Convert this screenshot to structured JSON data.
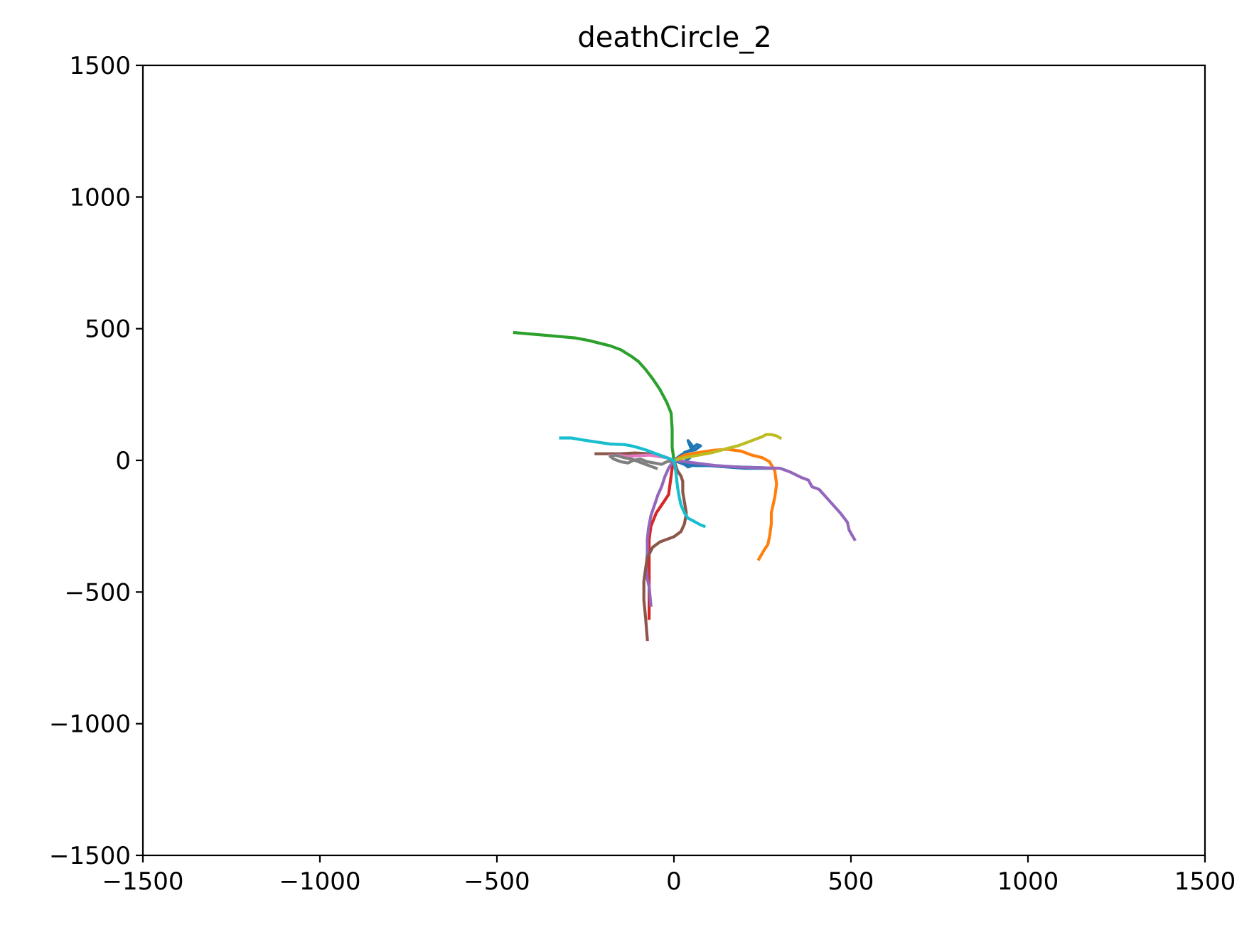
{
  "chart_data": {
    "type": "line",
    "title": "deathCircle_2",
    "xlabel": "",
    "ylabel": "",
    "xlim": [
      -1500,
      1500
    ],
    "ylim": [
      -1500,
      1500
    ],
    "xticks": [
      -1500,
      -1000,
      -500,
      0,
      500,
      1000,
      1500
    ],
    "yticks": [
      -1500,
      -1000,
      -500,
      0,
      500,
      1000,
      1500
    ],
    "xtick_labels": [
      "−1500",
      "−1000",
      "−500",
      "0",
      "500",
      "1000",
      "1500"
    ],
    "ytick_labels": [
      "−1500",
      "−1000",
      "−500",
      "0",
      "500",
      "1000",
      "1500"
    ],
    "grid": false,
    "legend": "none",
    "series": [
      {
        "color": "#1f77b4",
        "points": [
          [
            0,
            0
          ],
          [
            30,
            -15
          ],
          [
            60,
            -20
          ],
          [
            100,
            -20
          ],
          [
            150,
            -25
          ],
          [
            200,
            -30
          ],
          [
            280,
            -30
          ],
          [
            250,
            -28
          ],
          [
            180,
            -25
          ],
          [
            120,
            -22
          ],
          [
            60,
            -15
          ],
          [
            40,
            -25
          ],
          [
            25,
            -10
          ],
          [
            45,
            10
          ],
          [
            30,
            30
          ],
          [
            50,
            40
          ],
          [
            40,
            75
          ],
          [
            55,
            50
          ],
          [
            65,
            60
          ],
          [
            75,
            55
          ],
          [
            60,
            40
          ],
          [
            40,
            35
          ],
          [
            20,
            20
          ],
          [
            0,
            0
          ]
        ]
      },
      {
        "color": "#ff7f0e",
        "points": [
          [
            0,
            0
          ],
          [
            30,
            20
          ],
          [
            70,
            30
          ],
          [
            110,
            38
          ],
          [
            150,
            42
          ],
          [
            190,
            35
          ],
          [
            220,
            20
          ],
          [
            250,
            10
          ],
          [
            270,
            -5
          ],
          [
            285,
            -40
          ],
          [
            290,
            -90
          ],
          [
            285,
            -140
          ],
          [
            280,
            -170
          ],
          [
            275,
            -200
          ],
          [
            275,
            -240
          ],
          [
            270,
            -290
          ],
          [
            265,
            -320
          ],
          [
            255,
            -340
          ],
          [
            240,
            -375
          ]
        ]
      },
      {
        "color": "#2ca02c",
        "points": [
          [
            0,
            0
          ],
          [
            -5,
            50
          ],
          [
            -5,
            120
          ],
          [
            -8,
            180
          ],
          [
            -20,
            220
          ],
          [
            -40,
            270
          ],
          [
            -60,
            310
          ],
          [
            -80,
            345
          ],
          [
            -100,
            375
          ],
          [
            -120,
            395
          ],
          [
            -150,
            420
          ],
          [
            -180,
            435
          ],
          [
            -240,
            455
          ],
          [
            -280,
            465
          ],
          [
            -320,
            470
          ],
          [
            -380,
            477
          ],
          [
            -450,
            485
          ]
        ]
      },
      {
        "color": "#d62728",
        "points": [
          [
            0,
            0
          ],
          [
            -5,
            -30
          ],
          [
            -10,
            -80
          ],
          [
            -15,
            -130
          ],
          [
            -30,
            -160
          ],
          [
            -50,
            -200
          ],
          [
            -65,
            -250
          ],
          [
            -70,
            -300
          ],
          [
            -70,
            -380
          ],
          [
            -70,
            -450
          ],
          [
            -70,
            -520
          ],
          [
            -70,
            -600
          ]
        ]
      },
      {
        "color": "#9467bd",
        "points": [
          [
            0,
            0
          ],
          [
            -15,
            -30
          ],
          [
            -25,
            -60
          ],
          [
            -35,
            -100
          ],
          [
            -45,
            -130
          ],
          [
            -55,
            -170
          ],
          [
            -65,
            -210
          ],
          [
            -72,
            -260
          ],
          [
            -75,
            -300
          ],
          [
            -75,
            -350
          ],
          [
            -78,
            -400
          ],
          [
            -75,
            -450
          ],
          [
            -70,
            -480
          ],
          [
            -65,
            -550
          ]
        ]
      },
      {
        "color": "#9467bd",
        "points": [
          [
            0,
            0
          ],
          [
            60,
            -10
          ],
          [
            120,
            -20
          ],
          [
            180,
            -25
          ],
          [
            240,
            -28
          ],
          [
            300,
            -30
          ],
          [
            330,
            -45
          ],
          [
            360,
            -65
          ],
          [
            380,
            -75
          ],
          [
            390,
            -100
          ],
          [
            410,
            -110
          ],
          [
            430,
            -140
          ],
          [
            450,
            -170
          ],
          [
            470,
            -200
          ],
          [
            490,
            -235
          ],
          [
            495,
            -265
          ],
          [
            510,
            -300
          ]
        ]
      },
      {
        "color": "#8c564b",
        "points": [
          [
            0,
            0
          ],
          [
            5,
            -20
          ],
          [
            10,
            -40
          ],
          [
            20,
            -60
          ],
          [
            25,
            -80
          ],
          [
            25,
            -120
          ],
          [
            30,
            -160
          ],
          [
            35,
            -200
          ],
          [
            30,
            -240
          ],
          [
            20,
            -270
          ],
          [
            0,
            -290
          ],
          [
            -20,
            -300
          ],
          [
            -40,
            -310
          ],
          [
            -60,
            -330
          ],
          [
            -75,
            -370
          ],
          [
            -80,
            -410
          ],
          [
            -85,
            -460
          ],
          [
            -85,
            -530
          ],
          [
            -80,
            -600
          ],
          [
            -75,
            -680
          ]
        ]
      },
      {
        "color": "#8c564b",
        "points": [
          [
            0,
            0
          ],
          [
            -30,
            15
          ],
          [
            -70,
            25
          ],
          [
            -110,
            28
          ],
          [
            -150,
            25
          ],
          [
            -190,
            25
          ],
          [
            -220,
            25
          ]
        ]
      },
      {
        "color": "#e377c2",
        "points": [
          [
            0,
            0
          ],
          [
            -20,
            10
          ],
          [
            -45,
            15
          ],
          [
            -70,
            20
          ],
          [
            -100,
            18
          ],
          [
            -130,
            15
          ],
          [
            -160,
            20
          ],
          [
            -180,
            18
          ]
        ]
      },
      {
        "color": "#7f7f7f",
        "points": [
          [
            0,
            0
          ],
          [
            -20,
            -5
          ],
          [
            -35,
            -15
          ],
          [
            -55,
            -10
          ],
          [
            -75,
            -5
          ],
          [
            -95,
            5
          ],
          [
            -115,
            0
          ],
          [
            -130,
            -10
          ],
          [
            -150,
            -5
          ],
          [
            -170,
            5
          ],
          [
            -180,
            15
          ],
          [
            -165,
            20
          ],
          [
            -140,
            10
          ],
          [
            -120,
            5
          ],
          [
            -100,
            -5
          ],
          [
            -80,
            -15
          ],
          [
            -60,
            -25
          ],
          [
            -50,
            -30
          ]
        ]
      },
      {
        "color": "#bcbd22",
        "points": [
          [
            0,
            0
          ],
          [
            30,
            10
          ],
          [
            70,
            20
          ],
          [
            110,
            30
          ],
          [
            150,
            45
          ],
          [
            180,
            55
          ],
          [
            210,
            70
          ],
          [
            230,
            80
          ],
          [
            250,
            90
          ],
          [
            260,
            98
          ],
          [
            275,
            98
          ],
          [
            290,
            93
          ],
          [
            300,
            85
          ]
        ]
      },
      {
        "color": "#17becf",
        "points": [
          [
            0,
            0
          ],
          [
            -20,
            10
          ],
          [
            -40,
            20
          ],
          [
            -60,
            30
          ],
          [
            -80,
            40
          ],
          [
            -100,
            48
          ],
          [
            -120,
            55
          ],
          [
            -140,
            60
          ],
          [
            -180,
            62
          ],
          [
            -220,
            70
          ],
          [
            -260,
            78
          ],
          [
            -290,
            85
          ],
          [
            -310,
            85
          ],
          [
            -320,
            85
          ]
        ]
      },
      {
        "color": "#17becf",
        "points": [
          [
            0,
            0
          ],
          [
            5,
            -40
          ],
          [
            10,
            -100
          ],
          [
            15,
            -140
          ],
          [
            20,
            -170
          ],
          [
            30,
            -200
          ],
          [
            40,
            -220
          ],
          [
            55,
            -230
          ],
          [
            75,
            -245
          ],
          [
            85,
            -250
          ]
        ]
      }
    ]
  }
}
